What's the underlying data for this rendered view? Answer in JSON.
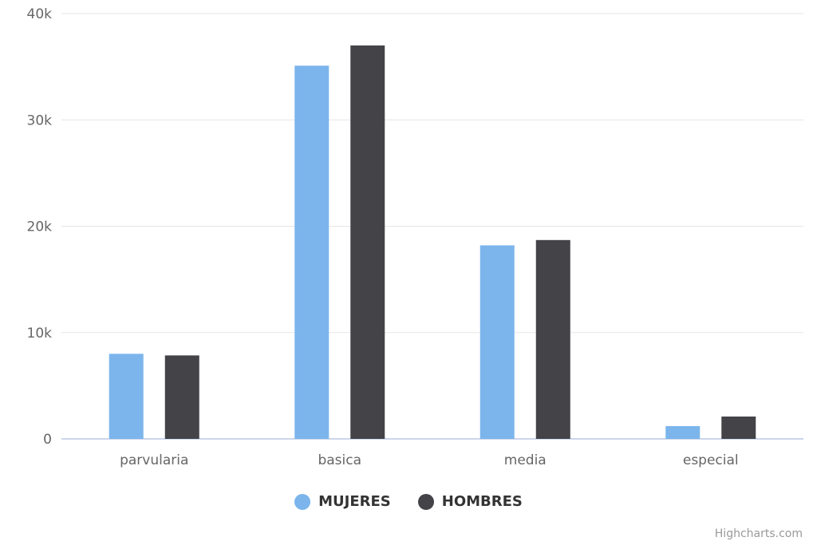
{
  "chart_data": {
    "type": "bar",
    "categories": [
      "parvularia",
      "basica",
      "media",
      "especial"
    ],
    "series": [
      {
        "name": "MUJERES",
        "color": "#7cb5ec",
        "values": [
          8000,
          35100,
          18200,
          1200
        ]
      },
      {
        "name": "HOMBRES",
        "color": "#434348",
        "values": [
          7850,
          37000,
          18700,
          2100
        ]
      }
    ],
    "ylim": [
      0,
      40000
    ],
    "yticks": [
      0,
      10000,
      20000,
      30000,
      40000
    ],
    "ytick_labels": [
      "0",
      "10k",
      "20k",
      "30k",
      "40k"
    ],
    "grid": true,
    "legend_position": "bottom-center"
  },
  "credits": "Highcharts.com"
}
